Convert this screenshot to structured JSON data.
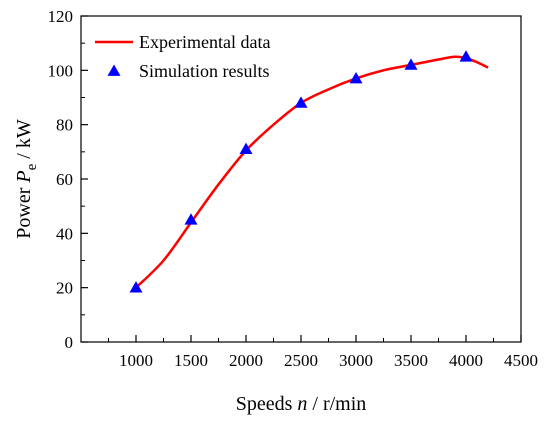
{
  "chart_data": {
    "type": "line",
    "xlabel": {
      "prefix": "Speeds ",
      "var": "n",
      "sep": " / ",
      "unit": "r/min"
    },
    "ylabel": {
      "prefix": "Power ",
      "var": "P",
      "sub": "e",
      "sep": " / ",
      "unit": "kW"
    },
    "xlim": [
      500,
      4500
    ],
    "ylim": [
      0,
      120
    ],
    "x_ticks": [
      1000,
      1500,
      2000,
      2500,
      3000,
      3500,
      4000,
      4500
    ],
    "y_ticks": [
      0,
      20,
      40,
      60,
      80,
      100,
      120
    ],
    "legend_position": "top-left",
    "series": [
      {
        "name": "Experimental data",
        "style": "line",
        "color": "#ff0000",
        "x": [
          1000,
          1250,
          1500,
          1750,
          2000,
          2250,
          2500,
          2750,
          3000,
          3250,
          3500,
          3750,
          3900,
          4000,
          4100,
          4200
        ],
        "y": [
          20,
          30,
          44,
          58,
          70.5,
          80,
          88,
          93,
          97,
          100,
          102,
          104,
          105,
          104.5,
          103,
          101
        ]
      },
      {
        "name": "Simulation results",
        "style": "triangle-markers",
        "color": "#0000ff",
        "x": [
          1000,
          1500,
          2000,
          2500,
          3000,
          3500,
          4000
        ],
        "y": [
          20,
          45,
          71,
          88,
          97,
          102,
          105
        ]
      }
    ]
  }
}
